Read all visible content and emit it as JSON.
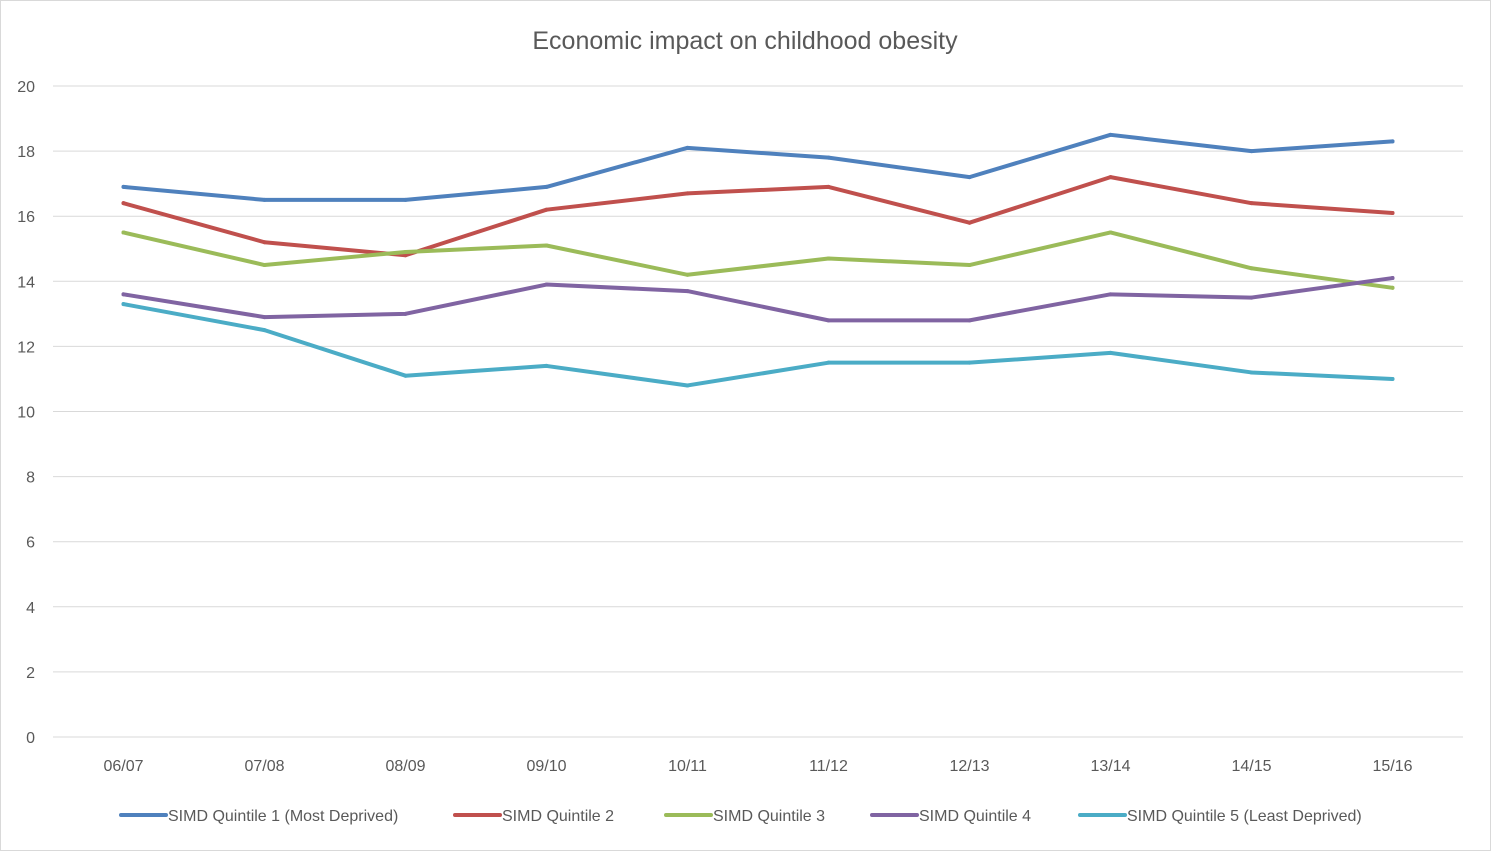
{
  "chart_data": {
    "type": "line",
    "title": "Economic impact on childhood obesity",
    "xlabel": "",
    "ylabel": "",
    "categories": [
      "06/07",
      "07/08",
      "08/09",
      "09/10",
      "10/11",
      "11/12",
      "12/13",
      "13/14",
      "14/15",
      "15/16"
    ],
    "ylim": [
      0,
      20
    ],
    "yticks": [
      0,
      2,
      4,
      6,
      8,
      10,
      12,
      14,
      16,
      18,
      20
    ],
    "grid": true,
    "legend_position": "bottom",
    "series": [
      {
        "name": "SIMD Quintile 1 (Most Deprived)",
        "color": "#4f81bd",
        "values": [
          16.9,
          16.5,
          16.5,
          16.9,
          18.1,
          17.8,
          17.2,
          18.5,
          18.0,
          18.3
        ]
      },
      {
        "name": "SIMD Quintile 2",
        "color": "#c0504d",
        "values": [
          16.4,
          15.2,
          14.8,
          16.2,
          16.7,
          16.9,
          15.8,
          17.2,
          16.4,
          16.1
        ]
      },
      {
        "name": "SIMD Quintile 3",
        "color": "#9bbb59",
        "values": [
          15.5,
          14.5,
          14.9,
          15.1,
          14.2,
          14.7,
          14.5,
          15.5,
          14.4,
          13.8
        ]
      },
      {
        "name": "SIMD Quintile 4",
        "color": "#8064a2",
        "values": [
          13.6,
          12.9,
          13.0,
          13.9,
          13.7,
          12.8,
          12.8,
          13.6,
          13.5,
          14.1
        ]
      },
      {
        "name": "SIMD Quintile 5 (Least Deprived)",
        "color": "#4bacc6",
        "values": [
          13.3,
          12.5,
          11.1,
          11.4,
          10.8,
          11.5,
          11.5,
          11.8,
          11.2,
          11.0
        ]
      }
    ]
  }
}
